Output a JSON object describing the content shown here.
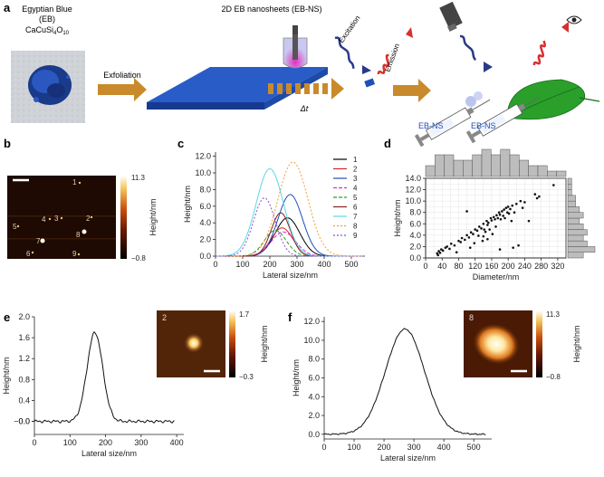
{
  "panel_a": {
    "letter": "a",
    "material_name_1": "Egyptian Blue",
    "material_name_2": "(EB)",
    "formula_base": "CaCuSi",
    "formula_sub1": "4",
    "formula_o": "O",
    "formula_sub2": "10",
    "exfoliation_label": "Exfoliation",
    "nanosheets_title": "2D EB nanosheets (EB-NS)",
    "delta_t_label": "Δt",
    "excitation_label": "Excitation",
    "emission_label": "Emission",
    "syringe_label_1": "EB-NS",
    "syringe_label_2": "EB-NS",
    "colors": {
      "eb_blue": "#1f4fb8",
      "arrow_orange": "#c98a2c",
      "excitation": "#2a3a8a",
      "emission": "#d83030",
      "leaf": "#2aa02a"
    }
  },
  "panel_b": {
    "letter": "b",
    "colorbar_max": "11.3",
    "colorbar_min": "−0.8",
    "colorbar_label": "Height/nm",
    "particle_labels": [
      "1",
      "2",
      "3",
      "4",
      "5",
      "6",
      "7",
      "8",
      "9"
    ]
  },
  "panel_c": {
    "letter": "c",
    "chart_data": {
      "type": "line",
      "xlabel": "Lateral size/nm",
      "ylabel": "Height/nm",
      "xlim": [
        0,
        550
      ],
      "ylim": [
        0,
        12.5
      ],
      "xticks": [
        "0",
        "100",
        "200",
        "300",
        "400",
        "500"
      ],
      "yticks": [
        "0.0",
        "2.0",
        "4.0",
        "6.0",
        "8.0",
        "10.0",
        "12.0"
      ],
      "series": [
        {
          "name": "1",
          "color": "#000000",
          "center": 265,
          "width": 45,
          "peak": 4.6
        },
        {
          "name": "2",
          "color": "#d62728",
          "center": 245,
          "width": 40,
          "peak": 3.4
        },
        {
          "name": "3",
          "color": "#1f4fb8",
          "center": 275,
          "width": 45,
          "peak": 7.4
        },
        {
          "name": "4",
          "color": "#d62fd6",
          "center": 250,
          "width": 45,
          "peak": 2.9
        },
        {
          "name": "5",
          "color": "#2ca02c",
          "center": 220,
          "width": 40,
          "peak": 3.1
        },
        {
          "name": "6",
          "color": "#8a1f1f",
          "center": 240,
          "width": 35,
          "peak": 5.2
        },
        {
          "name": "7",
          "color": "#5ad8e8",
          "center": 200,
          "width": 50,
          "peak": 10.5
        },
        {
          "name": "8",
          "color": "#f0a030",
          "center": 285,
          "width": 55,
          "peak": 11.3
        },
        {
          "name": "9",
          "color": "#8a4fd0",
          "center": 180,
          "width": 40,
          "peak": 7.0
        }
      ]
    }
  },
  "panel_d": {
    "letter": "d",
    "chart_data": {
      "type": "scatter",
      "xlabel": "Diameter/nm",
      "ylabel": "Height/nm",
      "xlim": [
        0,
        340
      ],
      "ylim": [
        0,
        14
      ],
      "xticks": [
        "0",
        "40",
        "80",
        "120",
        "160",
        "200",
        "240",
        "280",
        "320"
      ],
      "yticks": [
        "0.0",
        "2.0",
        "4.0",
        "6.0",
        "8.0",
        "10.0",
        "12.0",
        "14.0"
      ],
      "points": [
        [
          28,
          0.8
        ],
        [
          30,
          0.5
        ],
        [
          32,
          1.2
        ],
        [
          35,
          0.9
        ],
        [
          38,
          1.5
        ],
        [
          42,
          1.3
        ],
        [
          48,
          1.8
        ],
        [
          52,
          2.0
        ],
        [
          58,
          1.6
        ],
        [
          62,
          2.5
        ],
        [
          70,
          2.2
        ],
        [
          75,
          1.0
        ],
        [
          80,
          3.0
        ],
        [
          85,
          2.8
        ],
        [
          88,
          3.5
        ],
        [
          95,
          3.2
        ],
        [
          100,
          4.0
        ],
        [
          105,
          3.6
        ],
        [
          108,
          1.8
        ],
        [
          110,
          4.5
        ],
        [
          115,
          4.2
        ],
        [
          118,
          2.6
        ],
        [
          120,
          5.0
        ],
        [
          125,
          4.8
        ],
        [
          128,
          3.9
        ],
        [
          130,
          5.5
        ],
        [
          135,
          5.2
        ],
        [
          138,
          3.0
        ],
        [
          140,
          6.0
        ],
        [
          142,
          5.0
        ],
        [
          145,
          4.6
        ],
        [
          148,
          6.5
        ],
        [
          150,
          5.8
        ],
        [
          152,
          6.2
        ],
        [
          155,
          5.0
        ],
        [
          158,
          7.0
        ],
        [
          160,
          6.6
        ],
        [
          162,
          4.2
        ],
        [
          165,
          7.2
        ],
        [
          168,
          6.8
        ],
        [
          170,
          5.5
        ],
        [
          172,
          7.5
        ],
        [
          175,
          7.0
        ],
        [
          178,
          8.0
        ],
        [
          180,
          7.6
        ],
        [
          182,
          6.8
        ],
        [
          185,
          8.2
        ],
        [
          188,
          7.4
        ],
        [
          190,
          8.5
        ],
        [
          192,
          7.0
        ],
        [
          195,
          8.8
        ],
        [
          198,
          8.0
        ],
        [
          200,
          9.0
        ],
        [
          202,
          7.8
        ],
        [
          205,
          8.6
        ],
        [
          208,
          6.5
        ],
        [
          210,
          9.2
        ],
        [
          212,
          1.8
        ],
        [
          180,
          1.5
        ],
        [
          215,
          8.0
        ],
        [
          220,
          9.5
        ],
        [
          225,
          2.2
        ],
        [
          230,
          10.0
        ],
        [
          235,
          8.8
        ],
        [
          240,
          9.8
        ],
        [
          250,
          6.5
        ],
        [
          265,
          11.2
        ],
        [
          270,
          10.5
        ],
        [
          275,
          10.8
        ],
        [
          310,
          12.8
        ],
        [
          100,
          8.2
        ],
        [
          150,
          3.3
        ],
        [
          140,
          3.8
        ]
      ],
      "top_hist": [
        2,
        4,
        4,
        3,
        3,
        4,
        5,
        4,
        5,
        4,
        3,
        2,
        2,
        1,
        1
      ],
      "right_hist": [
        4,
        7,
        5,
        4,
        5,
        4,
        3,
        4,
        3,
        2,
        2,
        1,
        1,
        1
      ]
    }
  },
  "panel_e": {
    "letter": "e",
    "chart_data": {
      "type": "line",
      "xlabel": "Lateral size/nm",
      "ylabel": "Height/nm",
      "xlim": [
        0,
        420
      ],
      "ylim": [
        -0.25,
        2.0
      ],
      "xticks": [
        "0",
        "100",
        "200",
        "300",
        "400"
      ],
      "yticks": [
        "−0.0",
        "0.0",
        "0.4",
        "0.8",
        "1.2",
        "1.6",
        "2.0"
      ],
      "center": 170,
      "width": 22,
      "peak": 1.7,
      "baseline": 0.0
    },
    "inset_label": "2",
    "colorbar_max": "1.7",
    "colorbar_min": "−0.3",
    "colorbar_label": "Height/nm"
  },
  "panel_f": {
    "letter": "f",
    "chart_data": {
      "type": "line",
      "xlabel": "Lateral size/nm",
      "ylabel": "Height/nm",
      "xlim": [
        0,
        560
      ],
      "ylim": [
        -0.5,
        12.5
      ],
      "xticks": [
        "0",
        "100",
        "200",
        "300",
        "400",
        "500"
      ],
      "yticks": [
        "0.0",
        "2.0",
        "4.0",
        "6.0",
        "8.0",
        "10.0",
        "12.0"
      ],
      "center": 270,
      "width": 65,
      "peak": 11.2,
      "baseline": 0.0
    },
    "inset_label": "8",
    "colorbar_max": "11.3",
    "colorbar_min": "−0.8",
    "colorbar_label": "Height/nm"
  }
}
